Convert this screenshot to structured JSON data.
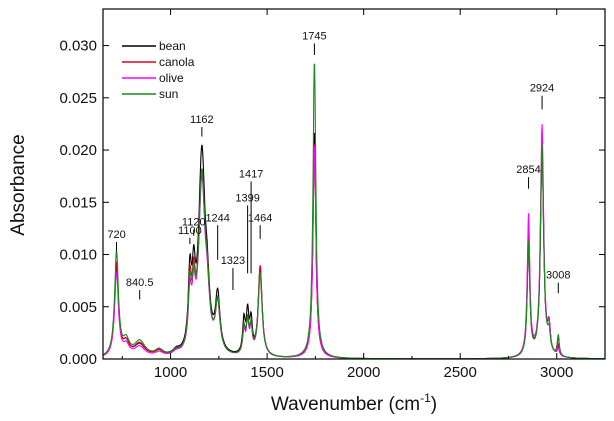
{
  "chart_data": {
    "type": "line",
    "title": "",
    "xlabel": "Wavenumber (cm",
    "xlabel_sup": "-1",
    "xlabel_tail": ")",
    "ylabel": "Absorbance",
    "xlim": [
      650,
      3250
    ],
    "ylim": [
      0,
      0.0335
    ],
    "xticks": [
      1000,
      1500,
      2000,
      2500,
      3000
    ],
    "xtick_labels": [
      "1000",
      "1500",
      "2000",
      "2500",
      "3000"
    ],
    "yticks": [
      0,
      0.005,
      0.01,
      0.015,
      0.02,
      0.025,
      0.03
    ],
    "ytick_labels": [
      "0.000",
      "0.005",
      "0.010",
      "0.015",
      "0.020",
      "0.025",
      "0.030"
    ],
    "legend_position": "top-left",
    "series": [
      {
        "name": "bean",
        "color": "#000000",
        "peaks": [
          [
            720,
            12,
            0.0088
          ],
          [
            770,
            20,
            0.0012
          ],
          [
            840,
            35,
            0.0012
          ],
          [
            940,
            25,
            0.0006
          ],
          [
            1030,
            20,
            0.0004
          ],
          [
            1100,
            10,
            0.0068
          ],
          [
            1120,
            10,
            0.0058
          ],
          [
            1162,
            20,
            0.019
          ],
          [
            1190,
            14,
            0.004
          ],
          [
            1244,
            14,
            0.0053
          ],
          [
            1380,
            8,
            0.0032
          ],
          [
            1399,
            8,
            0.0038
          ],
          [
            1417,
            8,
            0.003
          ],
          [
            1464,
            12,
            0.0085
          ],
          [
            1745,
            9,
            0.0218
          ],
          [
            2854,
            8,
            0.011
          ],
          [
            2924,
            10,
            0.0198
          ],
          [
            2960,
            8,
            0.0025
          ],
          [
            3008,
            6,
            0.0018
          ]
        ]
      },
      {
        "name": "canola",
        "color": "#e0001b",
        "peaks": [
          [
            720,
            12,
            0.009
          ],
          [
            770,
            20,
            0.0012
          ],
          [
            840,
            35,
            0.0013
          ],
          [
            940,
            25,
            0.0005
          ],
          [
            1030,
            20,
            0.0003
          ],
          [
            1100,
            10,
            0.006
          ],
          [
            1120,
            10,
            0.0052
          ],
          [
            1162,
            20,
            0.0168
          ],
          [
            1190,
            14,
            0.004
          ],
          [
            1244,
            14,
            0.0045
          ],
          [
            1380,
            8,
            0.0025
          ],
          [
            1399,
            8,
            0.003
          ],
          [
            1417,
            8,
            0.0024
          ],
          [
            1464,
            12,
            0.0087
          ],
          [
            1745,
            9,
            0.0207
          ],
          [
            2854,
            8,
            0.0122
          ],
          [
            2924,
            10,
            0.0205
          ],
          [
            2960,
            8,
            0.0024
          ],
          [
            3008,
            6,
            0.001
          ]
        ]
      },
      {
        "name": "olive",
        "color": "#ff00ff",
        "peaks": [
          [
            720,
            12,
            0.008
          ],
          [
            770,
            20,
            0.001
          ],
          [
            840,
            35,
            0.001
          ],
          [
            940,
            25,
            0.0004
          ],
          [
            1030,
            20,
            0.0003
          ],
          [
            1100,
            10,
            0.005
          ],
          [
            1120,
            10,
            0.0045
          ],
          [
            1162,
            20,
            0.0163
          ],
          [
            1190,
            14,
            0.0035
          ],
          [
            1244,
            14,
            0.0048
          ],
          [
            1380,
            8,
            0.0022
          ],
          [
            1399,
            8,
            0.0028
          ],
          [
            1417,
            8,
            0.0022
          ],
          [
            1464,
            12,
            0.008
          ],
          [
            1745,
            9,
            0.0205
          ],
          [
            2854,
            8,
            0.0135
          ],
          [
            2924,
            10,
            0.0222
          ],
          [
            2960,
            8,
            0.0022
          ],
          [
            3008,
            6,
            0.0007
          ]
        ]
      },
      {
        "name": "sun",
        "color": "#1a8a1a",
        "peaks": [
          [
            720,
            12,
            0.01
          ],
          [
            770,
            20,
            0.0014
          ],
          [
            840,
            35,
            0.0015
          ],
          [
            940,
            25,
            0.0006
          ],
          [
            1030,
            20,
            0.0004
          ],
          [
            1100,
            10,
            0.0055
          ],
          [
            1120,
            10,
            0.0048
          ],
          [
            1162,
            20,
            0.0168
          ],
          [
            1190,
            14,
            0.0038
          ],
          [
            1244,
            14,
            0.0047
          ],
          [
            1380,
            8,
            0.0024
          ],
          [
            1399,
            8,
            0.003
          ],
          [
            1417,
            8,
            0.0024
          ],
          [
            1464,
            12,
            0.008
          ],
          [
            1745,
            9,
            0.0285
          ],
          [
            2854,
            8,
            0.0108
          ],
          [
            2924,
            10,
            0.0203
          ],
          [
            2960,
            8,
            0.0018
          ],
          [
            3008,
            6,
            0.002
          ]
        ]
      }
    ],
    "annotations": [
      {
        "label": "720",
        "x": 720,
        "y0": 0.0103,
        "y1": 0.0112
      },
      {
        "label": "840.5",
        "x": 840,
        "y0": 0.0057,
        "y1": 0.0066
      },
      {
        "label": "1100",
        "x": 1100,
        "y0": 0.011,
        "y1": 0.0116
      },
      {
        "label": "1120",
        "x": 1120,
        "y0": 0.0118,
        "y1": 0.0124
      },
      {
        "label": "1162",
        "x": 1162,
        "y0": 0.0213,
        "y1": 0.0222
      },
      {
        "label": "1244",
        "x": 1244,
        "y0": 0.0095,
        "y1": 0.0128
      },
      {
        "label": "1323",
        "x": 1323,
        "y0": 0.0066,
        "y1": 0.0087
      },
      {
        "label": "1399",
        "x": 1399,
        "y0": 0.0082,
        "y1": 0.0147
      },
      {
        "label": "1417",
        "x": 1417,
        "y0": 0.0082,
        "y1": 0.017
      },
      {
        "label": "1464",
        "x": 1464,
        "y0": 0.0115,
        "y1": 0.0128
      },
      {
        "label": "1745",
        "x": 1745,
        "y0": 0.0291,
        "y1": 0.0302
      },
      {
        "label": "2854",
        "x": 2854,
        "y0": 0.0163,
        "y1": 0.0174
      },
      {
        "label": "2924",
        "x": 2924,
        "y0": 0.0239,
        "y1": 0.0252
      },
      {
        "label": "3008",
        "x": 3008,
        "y0": 0.0063,
        "y1": 0.0073
      }
    ]
  }
}
